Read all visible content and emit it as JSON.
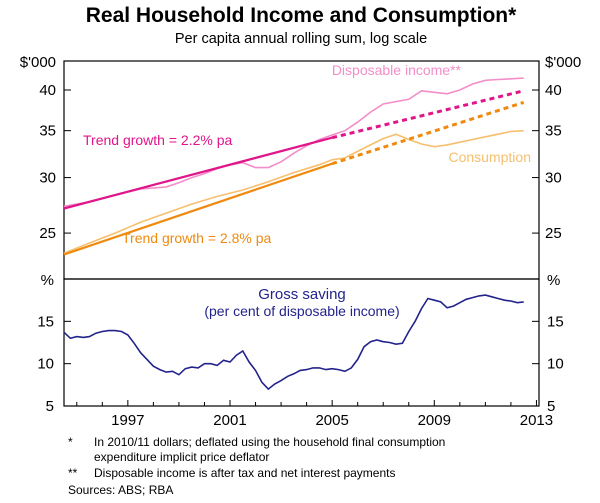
{
  "chart_title": "Real Household Income and Consumption*",
  "chart_subtitle": "Per capita annual rolling sum, log scale",
  "colors": {
    "income": "#f28ec8",
    "consumption": "#f6bf6e",
    "income_trend": "#e0158a",
    "consumption_trend": "#f08a0f",
    "saving": "#23238c",
    "frame": "#000000",
    "grid": "#d9d9d9"
  },
  "chart_data": [
    {
      "type": "line",
      "scale": "log",
      "yunit_left": "$'000",
      "yunit_right": "$'000",
      "ylim": [
        21.5,
        44
      ],
      "yticks": [
        25,
        30,
        35,
        40
      ],
      "xlim": [
        1995.0,
        2013.6
      ],
      "grid": false,
      "series": [
        {
          "name": "Disposable income**",
          "x": [
            1995.0,
            1996.0,
            1997.0,
            1998.0,
            1999.0,
            1999.5,
            2000.0,
            2000.5,
            2001.0,
            2001.5,
            2002.0,
            2002.5,
            2003.0,
            2003.5,
            2004.0,
            2004.5,
            2005.0,
            2005.5,
            2006.0,
            2006.5,
            2007.0,
            2007.5,
            2008.0,
            2008.5,
            2009.0,
            2009.5,
            2010.0,
            2010.5,
            2011.0,
            2011.5,
            2012.0,
            2012.5,
            2013.0
          ],
          "values": [
            27.3,
            27.7,
            28.3,
            28.9,
            29.1,
            29.5,
            30.0,
            30.4,
            30.9,
            31.3,
            31.5,
            31.0,
            31.0,
            31.6,
            32.5,
            33.3,
            34.0,
            34.5,
            35.0,
            36.0,
            37.2,
            38.2,
            38.5,
            38.8,
            39.9,
            39.7,
            39.5,
            40.0,
            40.8,
            41.3,
            41.4,
            41.5,
            41.6
          ]
        },
        {
          "name": "Consumption",
          "x": [
            1995.0,
            1996.0,
            1997.0,
            1998.0,
            1999.0,
            2000.0,
            2001.0,
            2002.0,
            2003.0,
            2004.0,
            2005.0,
            2005.5,
            2006.0,
            2006.5,
            2007.0,
            2007.5,
            2008.0,
            2008.5,
            2009.0,
            2009.5,
            2010.0,
            2010.5,
            2011.0,
            2011.5,
            2012.0,
            2012.5,
            2013.0
          ],
          "values": [
            23.4,
            24.2,
            25.0,
            25.9,
            26.7,
            27.5,
            28.2,
            28.8,
            29.6,
            30.5,
            31.3,
            31.8,
            32.0,
            32.7,
            33.4,
            34.1,
            34.6,
            34.0,
            33.5,
            33.2,
            33.4,
            33.7,
            34.0,
            34.3,
            34.6,
            34.9,
            35.0
          ]
        },
        {
          "name": "Trend growth = 2.2% pa",
          "x": [
            1995.0,
            2005.5,
            2013.0
          ],
          "values": [
            27.1,
            34.2,
            39.9
          ],
          "dashed_after": 2005.5
        },
        {
          "name": "Trend growth = 2.8% pa",
          "x": [
            1995.0,
            2005.5,
            2013.0
          ],
          "values": [
            23.3,
            31.4,
            38.4
          ],
          "dashed_after": 2005.5
        }
      ],
      "annotations": [
        {
          "text": "Disposable income**",
          "series": "Disposable income**"
        },
        {
          "text": "Trend growth = 2.2% pa",
          "series": "Trend growth = 2.2% pa"
        },
        {
          "text": "Consumption",
          "series": "Consumption"
        },
        {
          "text": "Trend growth = 2.8% pa",
          "series": "Trend growth = 2.8% pa"
        }
      ]
    },
    {
      "type": "line",
      "title": "Gross saving",
      "subtitle": "(per cent of disposable income)",
      "yunit_left": "%",
      "yunit_right": "%",
      "ylim": [
        5,
        20
      ],
      "yticks": [
        5,
        10,
        15
      ],
      "xlim": [
        1995.0,
        2013.6
      ],
      "xticks": [
        1997,
        2001,
        2005,
        2009,
        2013
      ],
      "grid": false,
      "series": [
        {
          "name": "Gross saving",
          "x": [
            1995.0,
            1995.25,
            1995.5,
            1995.75,
            1996.0,
            1996.25,
            1996.5,
            1996.75,
            1997.0,
            1997.25,
            1997.5,
            1997.75,
            1998.0,
            1998.25,
            1998.5,
            1998.75,
            1999.0,
            1999.25,
            1999.5,
            1999.75,
            2000.0,
            2000.25,
            2000.5,
            2000.75,
            2001.0,
            2001.25,
            2001.5,
            2001.75,
            2002.0,
            2002.25,
            2002.5,
            2002.75,
            2003.0,
            2003.25,
            2003.5,
            2003.75,
            2004.0,
            2004.25,
            2004.5,
            2004.75,
            2005.0,
            2005.25,
            2005.5,
            2005.75,
            2006.0,
            2006.25,
            2006.5,
            2006.75,
            2007.0,
            2007.25,
            2007.5,
            2007.75,
            2008.0,
            2008.25,
            2008.5,
            2008.75,
            2009.0,
            2009.25,
            2009.5,
            2009.75,
            2010.0,
            2010.25,
            2010.5,
            2010.75,
            2011.0,
            2011.25,
            2011.5,
            2011.75,
            2012.0,
            2012.25,
            2012.5,
            2012.75,
            2013.0
          ],
          "values": [
            13.7,
            13.0,
            13.2,
            13.1,
            13.2,
            13.6,
            13.8,
            13.9,
            13.9,
            13.8,
            13.4,
            12.4,
            11.3,
            10.5,
            9.7,
            9.3,
            9.0,
            9.1,
            8.7,
            9.4,
            9.6,
            9.5,
            10.0,
            10.0,
            9.8,
            10.4,
            10.2,
            11.0,
            11.5,
            10.2,
            9.2,
            7.8,
            7.0,
            7.6,
            8.0,
            8.5,
            8.8,
            9.2,
            9.3,
            9.5,
            9.5,
            9.3,
            9.4,
            9.3,
            9.1,
            9.5,
            10.5,
            12.0,
            12.6,
            12.8,
            12.6,
            12.5,
            12.3,
            12.4,
            13.8,
            15.0,
            16.5,
            17.7,
            17.5,
            17.3,
            16.6,
            16.8,
            17.2,
            17.6,
            17.8,
            18.0,
            18.1,
            17.9,
            17.7,
            17.5,
            17.4,
            17.2,
            17.3
          ]
        }
      ]
    }
  ],
  "footnotes": [
    {
      "mark": "*",
      "lines": [
        "In 2010/11 dollars; deflated using the household final consumption",
        "expenditure implicit price deflator"
      ]
    },
    {
      "mark": "**",
      "lines": [
        "Disposable income is after tax and net interest payments"
      ]
    }
  ],
  "sources": "Sources: ABS; RBA"
}
